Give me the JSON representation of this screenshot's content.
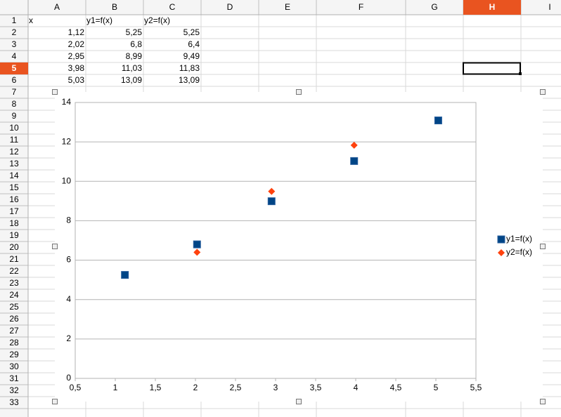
{
  "spreadsheet": {
    "columns": [
      "A",
      "B",
      "C",
      "D",
      "E",
      "F",
      "G",
      "H",
      "I"
    ],
    "rows": [
      1,
      2,
      3,
      4,
      5,
      6,
      7,
      8,
      9,
      10,
      11,
      12,
      13,
      14,
      15,
      16,
      17,
      18,
      19,
      20,
      21,
      22,
      23,
      24,
      25,
      26,
      27,
      28,
      29,
      30,
      31,
      32,
      33
    ],
    "cells": [
      [
        "x",
        "y1=f(x)",
        "y2=f(x)"
      ],
      [
        "1,12",
        "5,25",
        "5,25"
      ],
      [
        "2,02",
        "6,8",
        "6,4"
      ],
      [
        "2,95",
        "8,99",
        "9,49"
      ],
      [
        "3,98",
        "11,03",
        "11,83"
      ],
      [
        "5,03",
        "13,09",
        "13,09"
      ]
    ]
  },
  "chart_data": {
    "type": "scatter",
    "x": [
      1.12,
      2.02,
      2.95,
      3.98,
      5.03
    ],
    "series": [
      {
        "name": "y1=f(x)",
        "color": "#004586",
        "values": [
          5.25,
          6.8,
          8.99,
          11.03,
          13.09
        ]
      },
      {
        "name": "y2=f(x)",
        "color": "#ff420e",
        "values": [
          5.25,
          6.4,
          9.49,
          11.83,
          13.09
        ]
      }
    ],
    "xlim": [
      0.5,
      5.5
    ],
    "xticks": [
      {
        "value": 0.5,
        "label": "0,5"
      },
      1,
      {
        "value": 1.5,
        "label": "1,5"
      },
      2,
      {
        "value": 2.5,
        "label": "2,5"
      },
      3,
      {
        "value": 3.5,
        "label": "3,5"
      },
      4,
      {
        "value": 4.5,
        "label": "4,5"
      },
      5,
      {
        "value": 5.5,
        "label": "5,5"
      }
    ],
    "ylim": [
      0,
      14
    ],
    "yticks": [
      0,
      2,
      4,
      6,
      8,
      10,
      12,
      14
    ],
    "grid": true,
    "legend": "right"
  }
}
